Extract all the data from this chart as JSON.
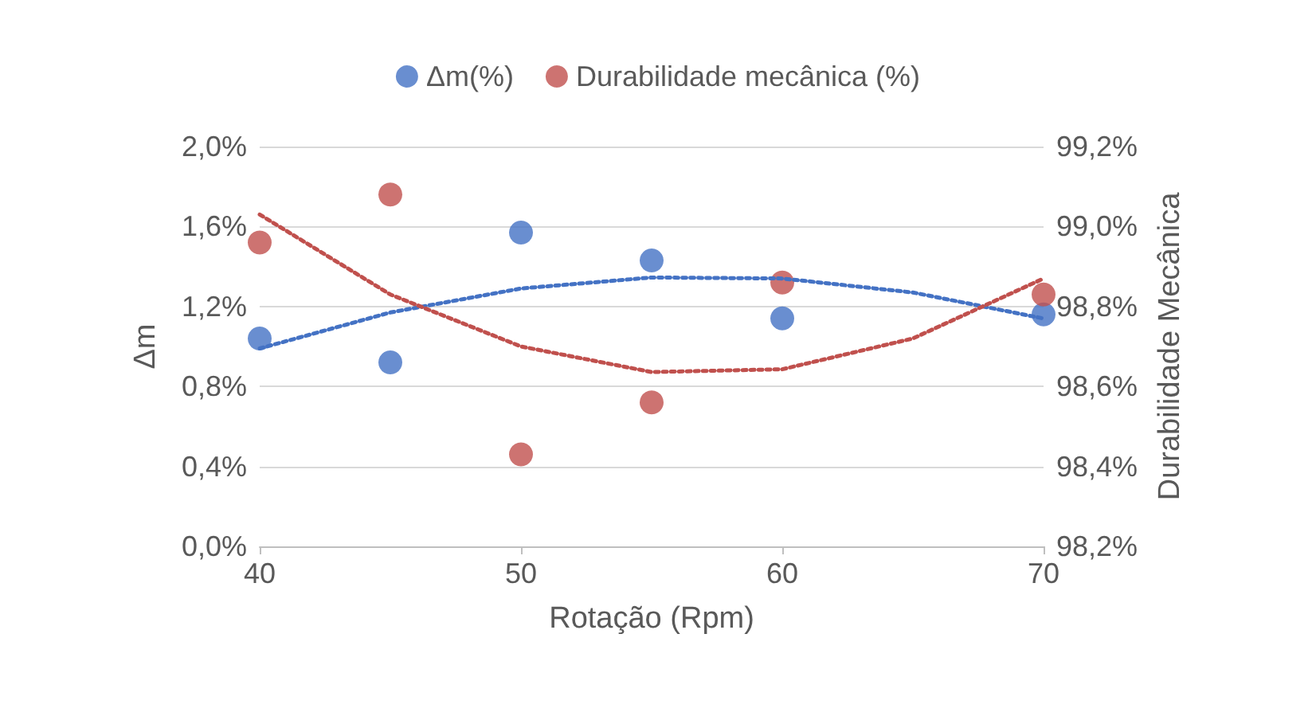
{
  "chart_data": {
    "type": "scatter",
    "xlabel": "Rotação (Rpm)",
    "ylabel": "Δm",
    "y2label": "Durabilidade Mecânica",
    "x": [
      40,
      45,
      50,
      55,
      60,
      70
    ],
    "series": [
      {
        "name": "Δm(%)",
        "color": "#4472c4",
        "values": [
          1.04,
          0.92,
          1.57,
          1.43,
          1.14,
          1.16
        ],
        "marker": "circle"
      },
      {
        "name": "Durabilidade mecânica (%)",
        "color": "#c0504d",
        "axis": "y2",
        "values": [
          98.96,
          99.08,
          98.43,
          98.56,
          98.86,
          98.83
        ],
        "marker": "circle"
      },
      {
        "type": "line",
        "color": "#4472c4",
        "x": [
          40,
          45,
          50,
          55,
          60,
          65,
          70
        ],
        "values": [
          0.99,
          1.17,
          1.29,
          1.345,
          1.34,
          1.27,
          1.14
        ],
        "marker": "none",
        "line_style": "dotted"
      },
      {
        "type": "line",
        "color": "#c0504d",
        "axis": "y2",
        "x": [
          40,
          45,
          50,
          55,
          60,
          65,
          70
        ],
        "values": [
          99.03,
          98.83,
          98.7,
          98.636,
          98.643,
          98.72,
          98.87
        ],
        "marker": "none",
        "line_style": "dotted"
      }
    ],
    "xlim": [
      40,
      70
    ],
    "xticks": [
      40,
      50,
      60,
      70
    ],
    "ylim": [
      0,
      2.0
    ],
    "yticks": [
      {
        "value": 0,
        "label": "0,0%"
      },
      {
        "value": 0.4,
        "label": "0,4%"
      },
      {
        "value": 0.8,
        "label": "0,8%"
      },
      {
        "value": 1.2,
        "label": "1,2%"
      },
      {
        "value": 1.6,
        "label": "1,6%"
      },
      {
        "value": 2.0,
        "label": "2,0%"
      }
    ],
    "y2lim": [
      98.2,
      99.2
    ],
    "y2ticks": [
      {
        "value": 98.2,
        "label": "98,2%"
      },
      {
        "value": 98.4,
        "label": "98,4%"
      },
      {
        "value": 98.6,
        "label": "98,6%"
      },
      {
        "value": 98.8,
        "label": "98,8%"
      },
      {
        "value": 99.0,
        "label": "99,0%"
      },
      {
        "value": 99.2,
        "label": "99,2%"
      }
    ],
    "grid": "y",
    "legend": "top"
  }
}
